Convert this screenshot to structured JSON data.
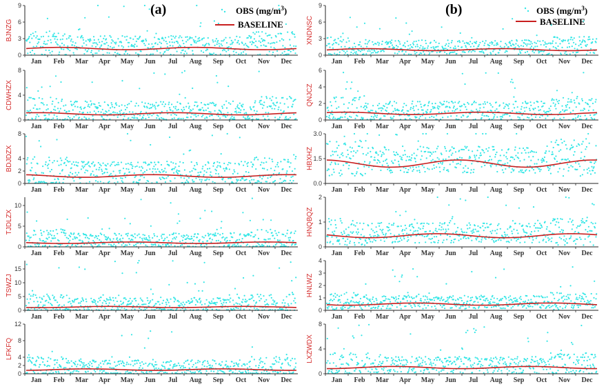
{
  "panels": [
    {
      "label": "(a)",
      "legend": {
        "obs": "OBS (mg/m",
        "obs_sup": "3",
        "obs_close": ")",
        "baseline": "BASELINE"
      }
    },
    {
      "label": "(b)",
      "legend": {
        "obs": "OBS (mg/m",
        "obs_sup": "3",
        "obs_close": ")",
        "baseline": "BASELINE"
      }
    }
  ],
  "colors": {
    "obs": "#33e6e6",
    "baseline": "#c81e1e",
    "station_label": "#d42a2a"
  },
  "months": [
    "Jan",
    "Feb",
    "Mar",
    "Apr",
    "May",
    "Jun",
    "Jul",
    "Aug",
    "Sep",
    "Oct",
    "Nov",
    "Dec"
  ],
  "chart_data": [
    {
      "type": "scatter",
      "panel": "(a)",
      "station": "BJNZG",
      "ylim": [
        0,
        9
      ],
      "yticks": [
        "9",
        "6",
        "3",
        "0"
      ],
      "baseline_level": 1.2,
      "obs_typical_max": 4.0,
      "obs_peak": 8.5
    },
    {
      "type": "scatter",
      "panel": "(a)",
      "station": "CDWHZX",
      "ylim": [
        0,
        8
      ],
      "yticks": [
        "8",
        "4",
        "0"
      ],
      "baseline_level": 1.0,
      "obs_typical_max": 3.5,
      "obs_peak": 7.0
    },
    {
      "type": "scatter",
      "panel": "(a)",
      "station": "BDJDZX",
      "ylim": [
        0,
        8
      ],
      "yticks": [
        "8",
        "4",
        "2",
        "0"
      ],
      "baseline_level": 1.2,
      "obs_typical_max": 4.0,
      "obs_peak": 8.0
    },
    {
      "type": "scatter",
      "panel": "(a)",
      "station": "TJDLZX",
      "ylim": [
        0,
        12
      ],
      "yticks": [
        "10",
        "5",
        "0"
      ],
      "baseline_level": 1.0,
      "obs_typical_max": 4.0,
      "obs_peak": 11.0
    },
    {
      "type": "scatter",
      "panel": "(a)",
      "station": "TSWZJ",
      "ylim": [
        0,
        18
      ],
      "yticks": [
        "15",
        "10",
        "5",
        "0"
      ],
      "baseline_level": 1.2,
      "obs_typical_max": 6.0,
      "obs_peak": 17.0
    },
    {
      "type": "scatter",
      "panel": "(a)",
      "station": "LFKFQ",
      "ylim": [
        0,
        12
      ],
      "yticks": [
        "12",
        "8",
        "4",
        "2",
        "0"
      ],
      "baseline_level": 1.0,
      "obs_typical_max": 4.0,
      "obs_peak": 10.0
    },
    {
      "type": "scatter",
      "panel": "(b)",
      "station": "XNDNSC",
      "ylim": [
        0,
        9
      ],
      "yticks": [
        "9",
        "6",
        "3",
        "0"
      ],
      "baseline_level": 1.0,
      "obs_typical_max": 3.0,
      "obs_peak": 6.0
    },
    {
      "type": "scatter",
      "panel": "(b)",
      "station": "QNJCZ",
      "ylim": [
        0,
        6
      ],
      "yticks": [
        "6",
        "4",
        "2",
        "0"
      ],
      "baseline_level": 0.8,
      "obs_typical_max": 2.5,
      "obs_peak": 5.0
    },
    {
      "type": "scatter",
      "panel": "(b)",
      "station": "HBXHZ",
      "ylim": [
        0,
        3
      ],
      "yticks": [
        "3.0",
        "1.5",
        "0.0"
      ],
      "baseline_level": 1.2,
      "obs_typical_max": 1.8,
      "obs_peak": 2.4
    },
    {
      "type": "scatter",
      "panel": "(b)",
      "station": "HNQBQZ",
      "ylim": [
        0,
        2
      ],
      "yticks": [
        "2",
        "1",
        "0"
      ],
      "baseline_level": 0.45,
      "obs_typical_max": 0.9,
      "obs_peak": 1.8
    },
    {
      "type": "scatter",
      "panel": "(b)",
      "station": "HNLWZ",
      "ylim": [
        0,
        4
      ],
      "yticks": [
        "4",
        "3",
        "2",
        "1",
        "0"
      ],
      "baseline_level": 0.5,
      "obs_typical_max": 1.2,
      "obs_peak": 3.0
    },
    {
      "type": "scatter",
      "panel": "(b)",
      "station": "LXZWDX",
      "ylim": [
        0,
        8
      ],
      "yticks": [
        "8",
        "4",
        "0"
      ],
      "baseline_level": 1.0,
      "obs_typical_max": 3.0,
      "obs_peak": 7.0
    }
  ]
}
